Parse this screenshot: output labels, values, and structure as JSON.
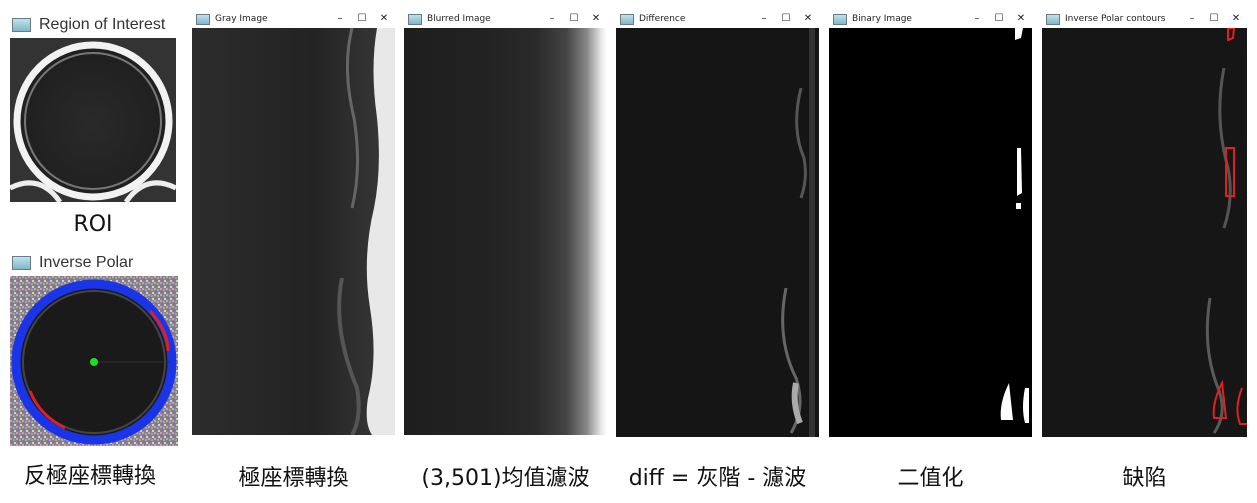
{
  "roi_window": {
    "title": "Region of Interest",
    "caption": "ROI"
  },
  "inverse_polar_window": {
    "title": "Inverse Polar",
    "caption": "反極座標轉換"
  },
  "panels": [
    {
      "title": "Gray Image",
      "caption": "極座標轉換"
    },
    {
      "title": "Blurred Image",
      "caption": "(3,501)均值濾波"
    },
    {
      "title": "Difference",
      "caption": "diff = 灰階 - 濾波"
    },
    {
      "title": "Binary Image",
      "caption": "二值化"
    },
    {
      "title": "Inverse Polar contours",
      "caption": "缺陷"
    }
  ],
  "window_controls": {
    "minimize": "–",
    "maximize": "☐",
    "close": "✕"
  },
  "colors": {
    "contour": "#e02020",
    "ring_blue": "#1a35e8",
    "center_green": "#22dd22"
  }
}
